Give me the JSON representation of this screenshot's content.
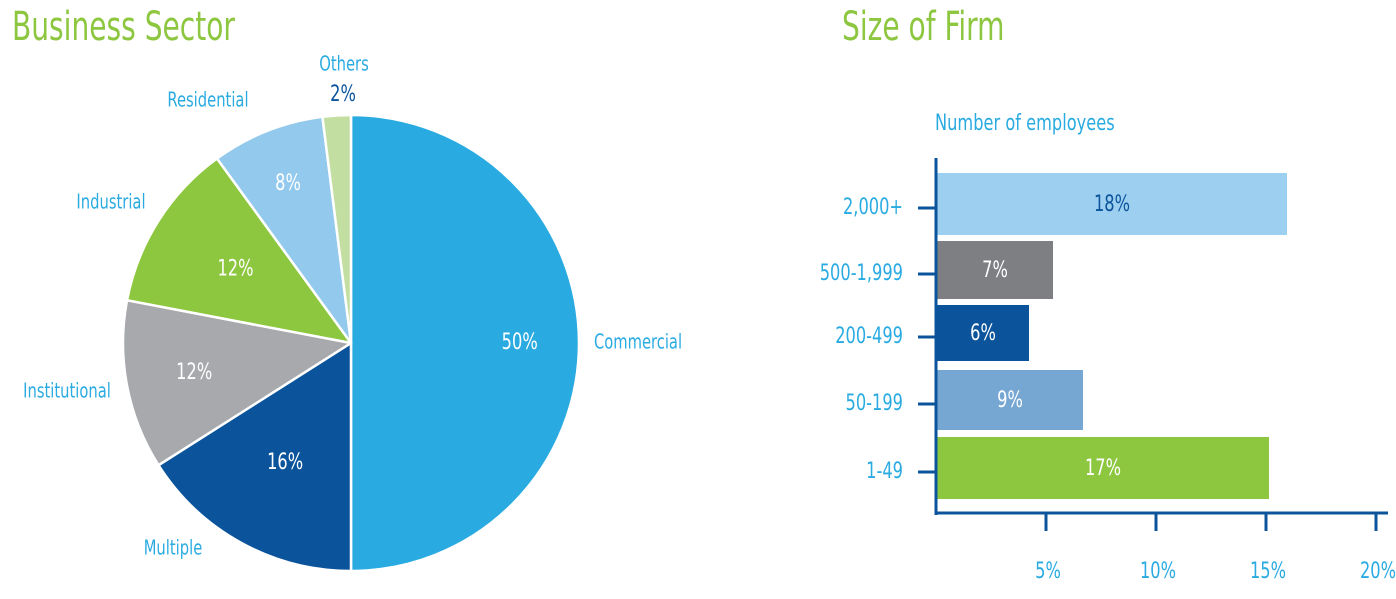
{
  "titles": {
    "left": "Business Sector",
    "right": "Size of Firm"
  },
  "chart_data": [
    {
      "type": "pie",
      "title": "Business Sector",
      "slices": [
        {
          "label": "Commercial",
          "value": 50,
          "display": "50%",
          "color": "#29abe2"
        },
        {
          "label": "Multiple",
          "value": 16,
          "display": "16%",
          "color": "#0b549c"
        },
        {
          "label": "Institutional",
          "value": 12,
          "display": "12%",
          "color": "#a7a9ac"
        },
        {
          "label": "Industrial",
          "value": 12,
          "display": "12%",
          "color": "#8dc63f"
        },
        {
          "label": "Residential",
          "value": 8,
          "display": "8%",
          "color": "#92c9ec"
        },
        {
          "label": "Others",
          "value": 2,
          "display": "2%",
          "color": "#c2dea0"
        }
      ]
    },
    {
      "type": "bar",
      "orientation": "horizontal",
      "title": "Size of Firm",
      "subtitle": "Number of employees",
      "categories": [
        "2,000+",
        "500-1,999",
        "200-499",
        "50-199",
        "1-49"
      ],
      "values": [
        18,
        7,
        6,
        9,
        17
      ],
      "displays": [
        "18%",
        "7%",
        "6%",
        "9%",
        "17%"
      ],
      "colors": [
        "#9dcff0",
        "#7d7f83",
        "#0b549c",
        "#76a7d3",
        "#8dc63f"
      ],
      "xticks": [
        "5%",
        "10%",
        "15%",
        "20%"
      ],
      "xtick_values": [
        5,
        10,
        15,
        20
      ],
      "xlim": [
        0,
        20
      ]
    }
  ],
  "colors": {
    "title": "#8dc63f",
    "label": "#29abe2",
    "axis": "#0b549c",
    "dark_label": "#0b549c"
  }
}
